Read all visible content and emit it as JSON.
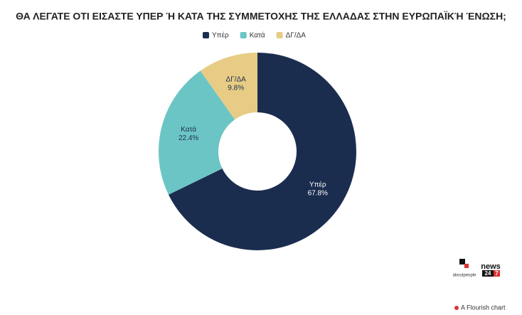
{
  "chart_data": {
    "type": "donut",
    "title": "ΘΑ ΛΕΓΑΤΕ ΟΤΙ ΕΙΣΑΣΤΕ ΥΠΕΡ Ή ΚΑΤΑ ΤΗΣ ΣΥΜΜΕΤΟΧΗΣ ΤΗΣ ΕΛΛΑΔΑΣ ΣΤΗΝ ΕΥΡΩΠΑΪΚΉ ΈΝΩΣΗ;",
    "categories": [
      "Υπέρ",
      "Κατά",
      "ΔΓ/ΔΑ"
    ],
    "values": [
      67.8,
      22.4,
      9.8
    ],
    "value_labels": [
      "67.8%",
      "22.4%",
      "9.8%"
    ],
    "colors": [
      "#1b2d4f",
      "#6cc5c5",
      "#e8cc85"
    ],
    "legend": "top"
  },
  "branding": {
    "logo_left": "aboutpeople",
    "logo_right_top": "news",
    "logo_right_num": "24",
    "logo_right_num2": "7",
    "credit": "A Flourish chart"
  }
}
